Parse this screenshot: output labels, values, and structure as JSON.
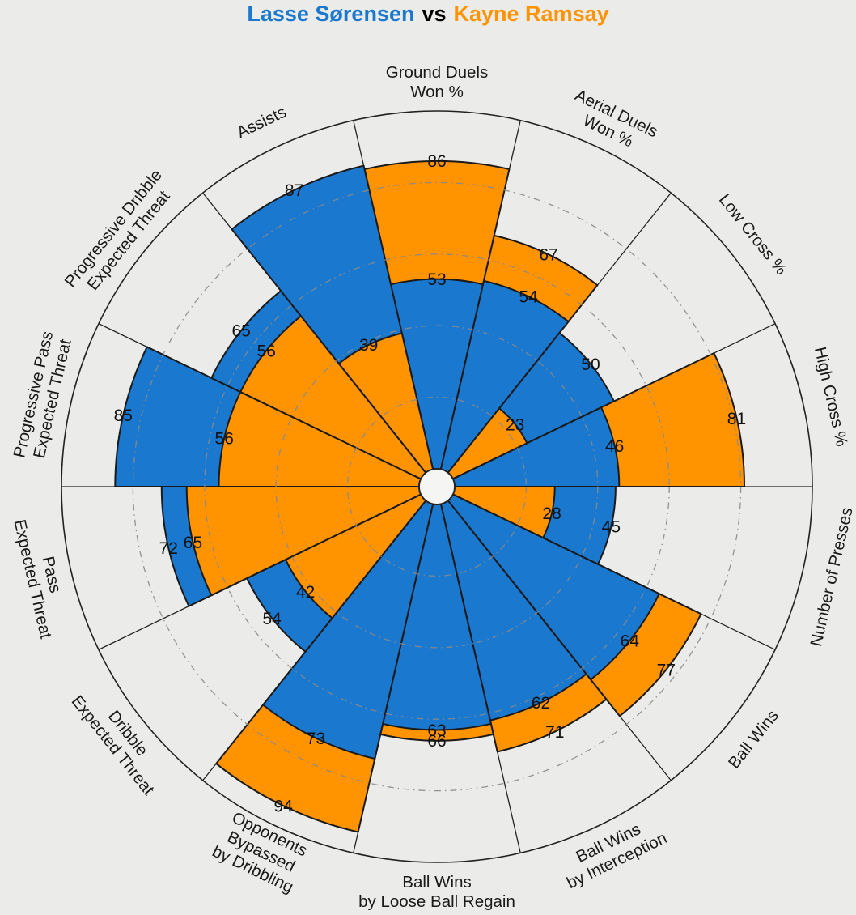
{
  "title": {
    "player1": "Lasse Sørensen",
    "separator": "vs",
    "player2": "Kayne Ramsay"
  },
  "colors": {
    "player1": "#1A78CF",
    "player2": "#FF9300",
    "background": "#EBEBE9",
    "outline": "#1a1a1a",
    "axis_line": "#222222",
    "grid_ring": "#8a8a8a",
    "hub_fill": "#F5F5F3",
    "value_text": "#111111",
    "label_text": "#1a1a1a"
  },
  "chart_data": {
    "type": "bar",
    "variant": "polar-pizza-comparison",
    "title": "Lasse Sørensen vs Kayne Ramsay",
    "start": "top",
    "direction": "clockwise",
    "grid": "dash-dot-circles",
    "legend_position": "title",
    "scale": {
      "min": 0,
      "max": 100,
      "grid_rings": [
        20,
        40,
        60,
        80
      ],
      "outer_ring": 100
    },
    "categories": [
      {
        "name": "Ground Duels Won %",
        "lines": [
          "Ground Duels",
          "Won %"
        ]
      },
      {
        "name": "Aerial Duels Won %",
        "lines": [
          "Aerial Duels",
          "Won %"
        ]
      },
      {
        "name": "Low Cross %",
        "lines": [
          "Low Cross %"
        ]
      },
      {
        "name": "High Cross %",
        "lines": [
          "High Cross %"
        ]
      },
      {
        "name": "Number of Presses",
        "lines": [
          "Number of Presses"
        ]
      },
      {
        "name": "Ball Wins",
        "lines": [
          "Ball Wins"
        ]
      },
      {
        "name": "Ball Wins by Interception",
        "lines": [
          "Ball Wins",
          "by Interception"
        ]
      },
      {
        "name": "Ball Wins by Loose Ball Regain",
        "lines": [
          "Ball Wins",
          "by Loose Ball Regain"
        ]
      },
      {
        "name": "Opponents Bypassed by Dribbling",
        "lines": [
          "Opponents",
          "Bypassed",
          "by Dribbling"
        ]
      },
      {
        "name": "Dribble Expected Threat",
        "lines": [
          "Dribble",
          "Expected Threat"
        ]
      },
      {
        "name": "Pass Expected Threat",
        "lines": [
          "Pass",
          "Expected Threat"
        ]
      },
      {
        "name": "Progressive Pass Expected Threat",
        "lines": [
          "Progressive Pass",
          "Expected Threat"
        ]
      },
      {
        "name": "Progressive Dribble Expected Threat",
        "lines": [
          "Progressive Dribble",
          "Expected Threat"
        ]
      },
      {
        "name": "Assists",
        "lines": [
          "Assists"
        ]
      }
    ],
    "series": [
      {
        "name": "Lasse Sørensen",
        "color_key": "player1",
        "values": [
          53,
          54,
          50,
          46,
          45,
          64,
          62,
          63,
          73,
          54,
          72,
          85,
          65,
          87
        ]
      },
      {
        "name": "Kayne Ramsay",
        "color_key": "player2",
        "values": [
          86,
          67,
          23,
          81,
          28,
          77,
          71,
          66,
          94,
          42,
          65,
          56,
          56,
          39
        ]
      }
    ]
  }
}
